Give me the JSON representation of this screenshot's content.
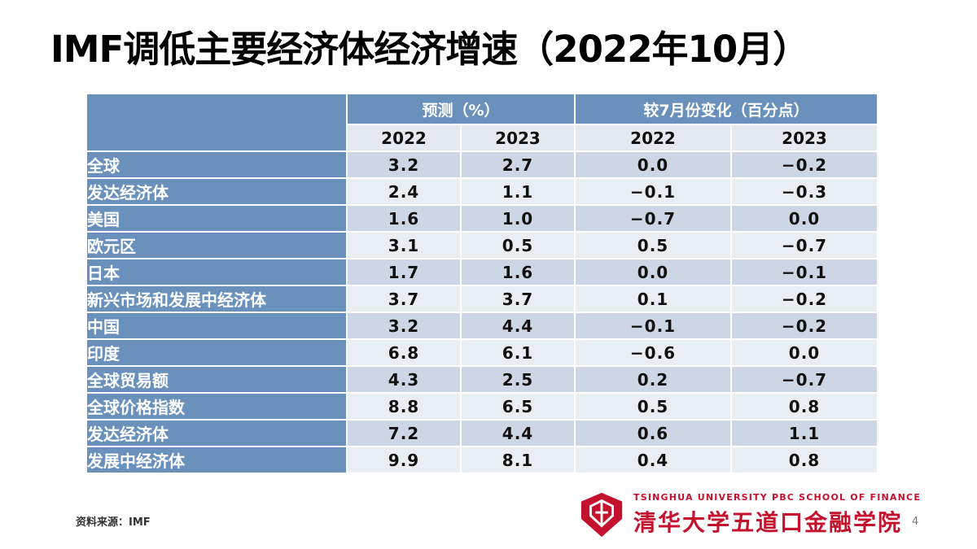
{
  "slide": {
    "title": "IMF调低主要经济体经济增速（2022年10月）",
    "source_note": "资料来源：IMF",
    "page_number": "4"
  },
  "table": {
    "group_headers": [
      {
        "label": "预测（%）"
      },
      {
        "label": "较7月份变化（百分点）"
      }
    ],
    "year_headers": [
      "2022",
      "2023",
      "2022",
      "2023"
    ],
    "rows": [
      {
        "label": "全球",
        "values": [
          "3.2",
          "2.7",
          "0.0",
          "−0.2"
        ]
      },
      {
        "label": "发达经济体",
        "values": [
          "2.4",
          "1.1",
          "−0.1",
          "−0.3"
        ]
      },
      {
        "label": "美国",
        "values": [
          "1.6",
          "1.0",
          "−0.7",
          "0.0"
        ]
      },
      {
        "label": "欧元区",
        "values": [
          "3.1",
          "0.5",
          "0.5",
          "−0.7"
        ]
      },
      {
        "label": "日本",
        "values": [
          "1.7",
          "1.6",
          "0.0",
          "−0.1"
        ]
      },
      {
        "label": "新兴市场和发展中经济体",
        "values": [
          "3.7",
          "3.7",
          "0.1",
          "−0.2"
        ]
      },
      {
        "label": "中国",
        "values": [
          "3.2",
          "4.4",
          "−0.1",
          "−0.2"
        ]
      },
      {
        "label": "印度",
        "values": [
          "6.8",
          "6.1",
          "−0.6",
          "0.0"
        ]
      },
      {
        "label": "全球贸易额",
        "values": [
          "4.3",
          "2.5",
          "0.2",
          "−0.7"
        ]
      },
      {
        "label": "全球价格指数",
        "values": [
          "8.8",
          "6.5",
          "0.5",
          "0.8"
        ]
      },
      {
        "label": "发达经济体",
        "values": [
          "7.2",
          "4.4",
          "0.6",
          "1.1"
        ]
      },
      {
        "label": "发展中经济体",
        "values": [
          "9.9",
          "8.1",
          "0.4",
          "0.8"
        ]
      }
    ]
  },
  "logo": {
    "en": "TSINGHUA UNIVERSITY PBC SCHOOL OF FINANCE",
    "zh": "清华大学五道口金融学院"
  },
  "colors": {
    "header_blue": "#6a90bc",
    "row_band_dark": "#ccd6e4",
    "row_band_light": "#e9edf4",
    "year_header_bg": "#e4e9f2",
    "brand_red": "#c4122e"
  }
}
